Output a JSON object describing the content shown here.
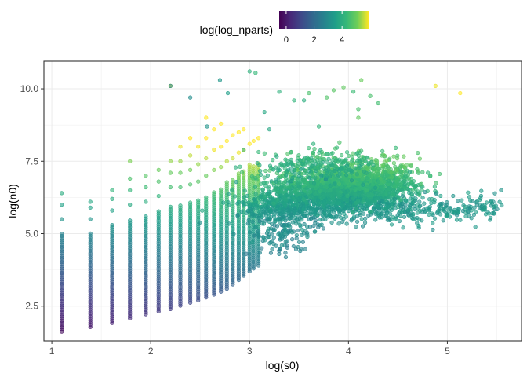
{
  "chart_data": {
    "type": "scatter",
    "title": "",
    "xlabel": "log(s0)",
    "ylabel": "log(n0)",
    "xlim": [
      0.92,
      5.75
    ],
    "ylim": [
      1.3,
      10.95
    ],
    "x_ticks": [
      1,
      2,
      3,
      4,
      5
    ],
    "y_ticks": [
      2.5,
      5.0,
      7.5,
      10.0
    ],
    "x_tick_labels": [
      "1",
      "2",
      "3",
      "4",
      "5"
    ],
    "y_tick_labels": [
      "2.5",
      "5.0",
      "7.5",
      "10.0"
    ],
    "grid": true,
    "legend": {
      "title": "log(log_nparts)",
      "placement": "top",
      "type": "colorbar",
      "range": [
        -0.5,
        5.9
      ],
      "ticks": [
        0,
        2,
        4
      ],
      "tick_labels": [
        "0",
        "2",
        "4"
      ],
      "palette": "viridis"
    },
    "point_alpha": 0.6,
    "columns": [
      {
        "x": 1.1,
        "ymin": 1.62,
        "ymax": 5.05,
        "extra": [
          5.5,
          6.0,
          6.4
        ]
      },
      {
        "x": 1.39,
        "ymin": 1.78,
        "ymax": 5.05,
        "extra": [
          5.5,
          5.9,
          6.1
        ]
      },
      {
        "x": 1.61,
        "ymin": 1.92,
        "ymax": 5.3,
        "extra": [
          5.8,
          6.2,
          6.5
        ]
      },
      {
        "x": 1.79,
        "ymin": 2.08,
        "ymax": 5.5,
        "extra": [
          6.0,
          6.5,
          6.9,
          7.5
        ]
      },
      {
        "x": 1.95,
        "ymin": 2.22,
        "ymax": 5.6,
        "extra": [
          6.1,
          6.6,
          7.0
        ]
      },
      {
        "x": 2.08,
        "ymin": 2.32,
        "ymax": 5.8,
        "extra": [
          6.3,
          6.8,
          7.2
        ]
      },
      {
        "x": 2.2,
        "ymin": 2.4,
        "ymax": 6.0,
        "extra": [
          6.6,
          7.1,
          7.5,
          10.1
        ]
      },
      {
        "x": 2.3,
        "ymin": 2.52,
        "ymax": 6.0,
        "extra": [
          6.6,
          7.1,
          7.5,
          8.0
        ]
      },
      {
        "x": 2.4,
        "ymin": 2.62,
        "ymax": 6.1,
        "extra": [
          6.7,
          7.2,
          7.7,
          8.3
        ]
      },
      {
        "x": 2.48,
        "ymin": 2.7,
        "ymax": 6.2,
        "extra": [
          6.8,
          7.4,
          8.0
        ]
      },
      {
        "x": 2.56,
        "ymin": 2.8,
        "ymax": 6.3,
        "extra": [
          7.0,
          7.6,
          8.3,
          9.0
        ]
      },
      {
        "x": 2.64,
        "ymin": 2.9,
        "ymax": 6.5,
        "extra": [
          7.2,
          7.9,
          8.6
        ]
      },
      {
        "x": 2.71,
        "ymin": 3.0,
        "ymax": 6.6,
        "extra": [
          7.3,
          8.0,
          8.8
        ]
      },
      {
        "x": 2.77,
        "ymin": 3.1,
        "ymax": 6.8,
        "extra": [
          7.5,
          8.2
        ]
      },
      {
        "x": 2.83,
        "ymin": 3.25,
        "ymax": 6.9,
        "extra": [
          7.6,
          8.4
        ]
      },
      {
        "x": 2.89,
        "ymin": 3.4,
        "ymax": 7.1,
        "extra": [
          7.8,
          8.5
        ]
      },
      {
        "x": 2.94,
        "ymin": 3.55,
        "ymax": 7.2,
        "extra": [
          7.9,
          8.6
        ]
      },
      {
        "x": 3.0,
        "ymin": 3.7,
        "ymax": 7.4,
        "extra": [
          8.1
        ]
      },
      {
        "x": 3.04,
        "ymin": 3.8,
        "ymax": 7.4,
        "extra": [
          8.2
        ]
      },
      {
        "x": 3.09,
        "ymin": 3.9,
        "ymax": 7.5,
        "extra": [
          8.3
        ]
      }
    ],
    "outliers": [
      {
        "x": 2.2,
        "y": 10.1,
        "c": 2.9
      },
      {
        "x": 2.4,
        "y": 9.7,
        "c": 3.0
      },
      {
        "x": 2.7,
        "y": 10.3,
        "c": 3.3
      },
      {
        "x": 2.78,
        "y": 9.85,
        "c": 3.5
      },
      {
        "x": 3.0,
        "y": 10.6,
        "c": 4.1
      },
      {
        "x": 3.06,
        "y": 10.55,
        "c": 4.3
      },
      {
        "x": 3.3,
        "y": 9.9,
        "c": 4.1
      },
      {
        "x": 3.45,
        "y": 9.6,
        "c": 4.2
      },
      {
        "x": 3.55,
        "y": 9.6,
        "c": 4.0
      },
      {
        "x": 3.6,
        "y": 9.85,
        "c": 4.6
      },
      {
        "x": 3.78,
        "y": 9.7,
        "c": 4.7
      },
      {
        "x": 3.85,
        "y": 9.95,
        "c": 4.8
      },
      {
        "x": 3.95,
        "y": 10.05,
        "c": 4.9
      },
      {
        "x": 4.05,
        "y": 9.9,
        "c": 4.4
      },
      {
        "x": 4.13,
        "y": 10.3,
        "c": 5.0
      },
      {
        "x": 4.22,
        "y": 9.75,
        "c": 4.6
      },
      {
        "x": 4.3,
        "y": 9.5,
        "c": 4.5
      },
      {
        "x": 4.1,
        "y": 9.3,
        "c": 4.6
      },
      {
        "x": 4.1,
        "y": 9.0,
        "c": 4.9
      },
      {
        "x": 4.88,
        "y": 10.1,
        "c": 5.8
      },
      {
        "x": 5.13,
        "y": 9.85,
        "c": 5.9
      },
      {
        "x": 3.15,
        "y": 9.2,
        "c": 3.8
      },
      {
        "x": 3.7,
        "y": 8.7,
        "c": 4.2
      },
      {
        "x": 3.2,
        "y": 8.6,
        "c": 3.8
      },
      {
        "x": 2.57,
        "y": 8.7,
        "c": 3.2
      }
    ],
    "clusters": [
      {
        "cx": 3.9,
        "cy": 6.5,
        "sx": 0.34,
        "sy": 0.42,
        "n": 1700,
        "cmin": 3.2,
        "cmax": 4.7
      },
      {
        "cx": 4.3,
        "cy": 6.8,
        "sx": 0.22,
        "sy": 0.35,
        "n": 500,
        "cmin": 3.8,
        "cmax": 4.8
      },
      {
        "cx": 3.4,
        "cy": 5.9,
        "sx": 0.25,
        "sy": 0.35,
        "n": 450,
        "cmin": 2.9,
        "cmax": 4.0
      },
      {
        "cx": 3.3,
        "cy": 4.9,
        "sx": 0.15,
        "sy": 0.35,
        "n": 90,
        "cmin": 2.6,
        "cmax": 3.4
      },
      {
        "cx": 3.7,
        "cy": 7.4,
        "sx": 0.3,
        "sy": 0.3,
        "n": 220,
        "cmin": 3.6,
        "cmax": 4.5
      }
    ],
    "tail": {
      "xmin": 4.25,
      "xmax": 5.55,
      "ystart": 5.75,
      "yend": 5.95,
      "sy": 0.22,
      "n": 230,
      "cmin": 3.0,
      "cmax": 3.6
    }
  }
}
